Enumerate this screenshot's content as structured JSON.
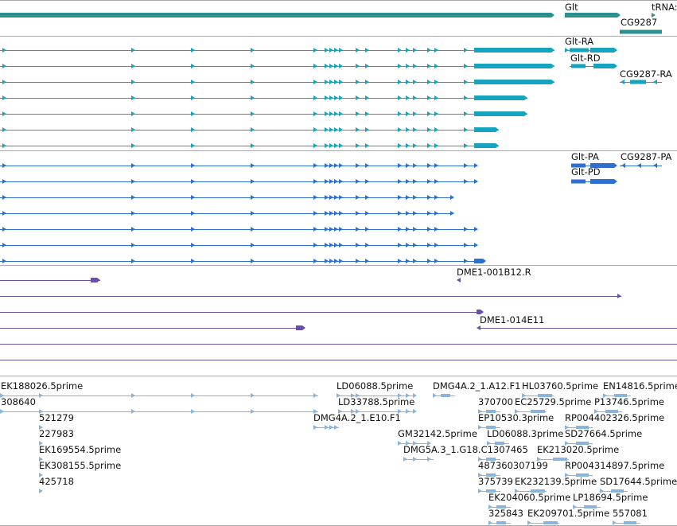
{
  "colors": {
    "gene": "#2a8f8f",
    "transcript": "#15a3bd",
    "protein": "#2f6fd1",
    "clone": "#6a4fa8",
    "est": "#8ab4dc",
    "separator": "#a9a9a9"
  },
  "gene_track": {
    "genes": [
      {
        "name": "Glt"
      },
      {
        "name": "CG9287"
      },
      {
        "name": "tRNA:"
      }
    ]
  },
  "transcript_track": {
    "labels": [
      "Glt-RA",
      "Glt-RD",
      "CG9287-RA"
    ]
  },
  "protein_track": {
    "labels": [
      "Glt-PA",
      "Glt-PD",
      "CG9287-PA"
    ]
  },
  "clone_track": {
    "labels": [
      "DME1-001B12.R",
      "DME1-014E11"
    ]
  },
  "est_track": {
    "labels": [
      "EK188026.5prime",
      "308640",
      "521279",
      "227983",
      "EK169554.5prime",
      "EK308155.5prime",
      "425718",
      "LD06088.5prime",
      "LD33788.5prime",
      "DMG4A.2_1.E10.F1",
      "GM32142.5prime",
      "DMG5A.3_1.G18.C1307465",
      "DMG4A.2_1.A12.F1",
      "370700",
      "EP10530.3prime",
      "LD06088.3prime",
      "487360307199",
      "375739",
      "EK204060.5prime",
      "325843",
      "HL03760.5prime",
      "EC25729.5prime",
      "EK213020.5prime",
      "EK232139.5prime",
      "EK209701.5prime",
      "EN14816.5prime",
      "P13746.5prime",
      "RP004402326.5prime",
      "SD27664.5prime",
      "RP004314897.5prime",
      "SD17644.5prime",
      "LP18694.5prime",
      "557081"
    ]
  }
}
